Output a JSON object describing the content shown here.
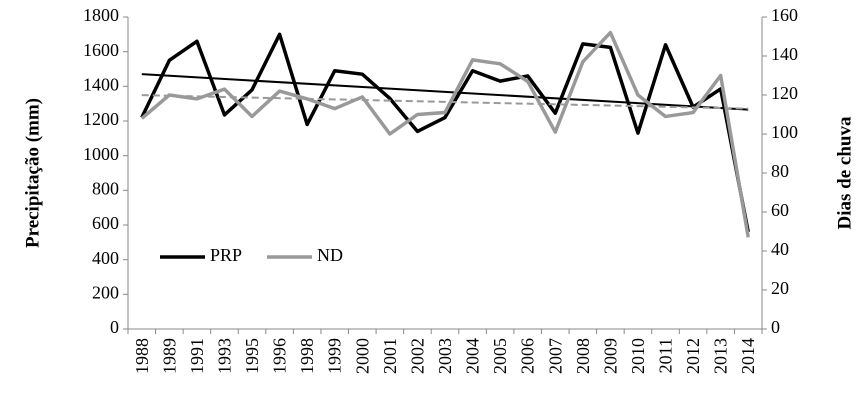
{
  "chart_data": {
    "type": "line",
    "y_label": "Precipitação (mm)",
    "y2_label": "Dias de chuva",
    "categories": [
      "1988",
      "1989",
      "1991",
      "1993",
      "1995",
      "1996",
      "1998",
      "1999",
      "2000",
      "2001",
      "2002",
      "2003",
      "2004",
      "2005",
      "2006",
      "2007",
      "2008",
      "2009",
      "2010",
      "2011",
      "2012",
      "2013",
      "2014"
    ],
    "series": [
      {
        "name": "PRP",
        "color": "#000000",
        "trend_color": "#000000",
        "values": [
          1220,
          1550,
          1660,
          1235,
          1380,
          1700,
          1180,
          1490,
          1470,
          1330,
          1140,
          1220,
          1490,
          1430,
          1460,
          1245,
          1645,
          1625,
          1130,
          1640,
          1280,
          1385,
          560
        ]
      },
      {
        "name": "ND",
        "color": "#999999",
        "trend_color": "#999999",
        "axis": "y2",
        "values": [
          108,
          120,
          118,
          123,
          109,
          122,
          118,
          113,
          119,
          100,
          110,
          111,
          138,
          136,
          127,
          101,
          137,
          152,
          120,
          109,
          111,
          130,
          47
        ]
      }
    ],
    "trendline": true,
    "ylim": [
      0,
      1800
    ],
    "yticks": [
      0,
      200,
      400,
      600,
      800,
      1000,
      1200,
      1400,
      1600,
      1800
    ],
    "y2lim": [
      0,
      160
    ],
    "y2ticks": [
      0,
      20,
      40,
      60,
      80,
      100,
      120,
      140,
      160
    ],
    "legend": "lower-left"
  }
}
